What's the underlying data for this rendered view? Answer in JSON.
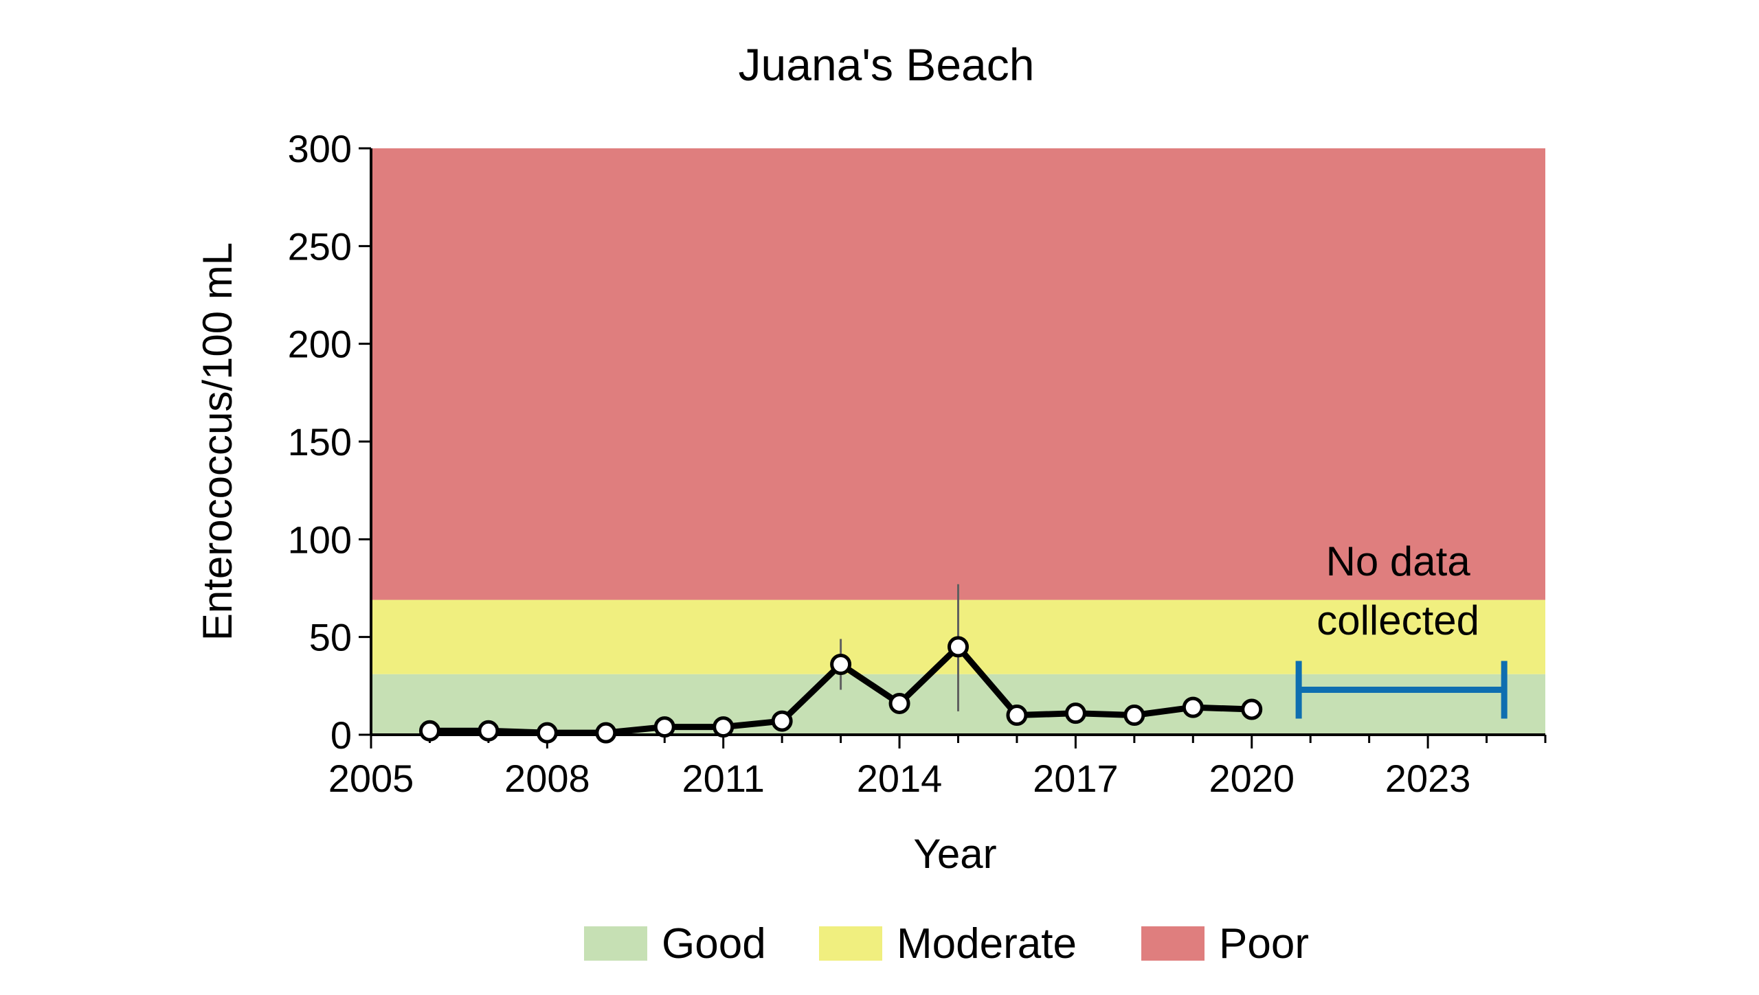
{
  "chart_data": {
    "type": "line",
    "title": "Juana's Beach",
    "xlabel": "Year",
    "ylabel": "Enterococcus/100 mL",
    "xlim": [
      2005,
      2025
    ],
    "ylim": [
      0,
      300
    ],
    "x_ticks": [
      2005,
      2008,
      2011,
      2014,
      2017,
      2020,
      2023
    ],
    "y_ticks": [
      0,
      50,
      100,
      150,
      200,
      250,
      300
    ],
    "grid": false,
    "legend_position": "bottom",
    "bands": [
      {
        "name": "Good",
        "from": 0,
        "to": 31,
        "color": "#c6e0b4"
      },
      {
        "name": "Moderate",
        "from": 31,
        "to": 69,
        "color": "#f0ef7f"
      },
      {
        "name": "Poor",
        "from": 69,
        "to": 300,
        "color": "#df7e7e"
      }
    ],
    "series": [
      {
        "x": [
          2006,
          2007,
          2008,
          2009,
          2010,
          2011,
          2012,
          2013,
          2014,
          2015,
          2016,
          2017,
          2018,
          2019,
          2020
        ],
        "values": [
          2,
          2,
          1,
          1,
          4,
          4,
          7,
          36,
          16,
          45,
          10,
          11,
          10,
          14,
          13
        ],
        "color": "#000000"
      }
    ],
    "error_bars": [
      {
        "x": 2013,
        "low": 23,
        "high": 49
      },
      {
        "x": 2015,
        "low": 12,
        "high": 77
      }
    ],
    "no_data": {
      "text_lines": [
        "No data",
        "collected"
      ],
      "x_start": 2020.8,
      "x_end": 2024.3,
      "y": 23,
      "color": "#0e6eb0"
    }
  }
}
